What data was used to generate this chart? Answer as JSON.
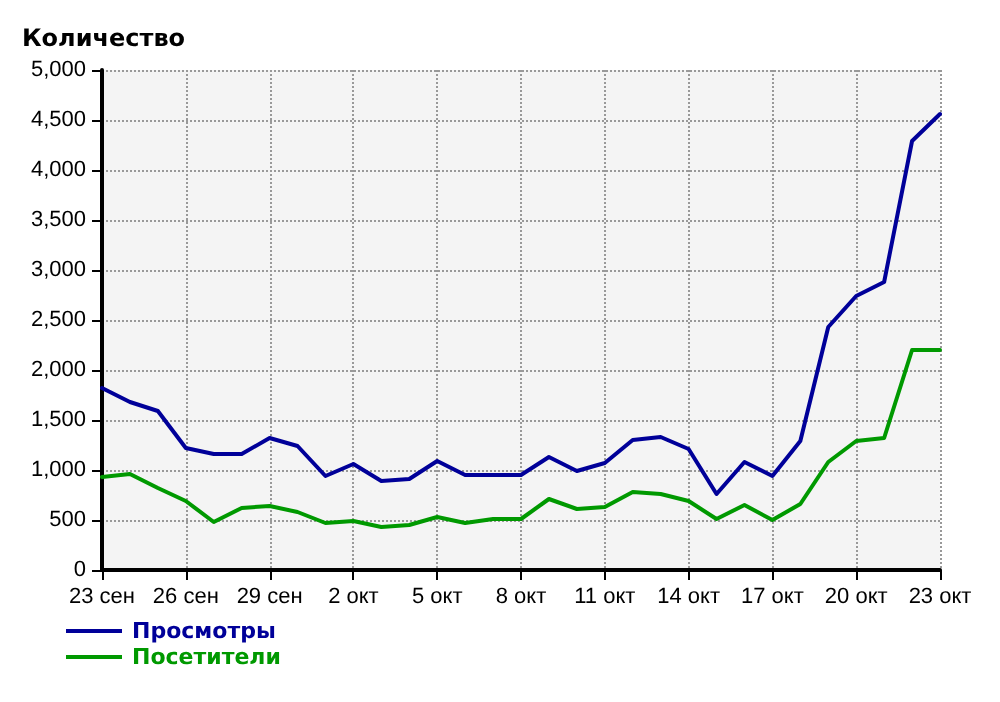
{
  "chart_data": {
    "type": "line",
    "ylabel": "Количество",
    "categories": [
      "23 сен",
      null,
      null,
      "26 сен",
      null,
      null,
      "29 сен",
      null,
      null,
      "2 окт",
      null,
      null,
      "5 окт",
      null,
      null,
      "8 окт",
      null,
      null,
      "11 окт",
      null,
      null,
      "14 окт",
      null,
      null,
      "17 окт",
      null,
      null,
      "20 окт",
      null,
      null,
      "23 окт"
    ],
    "series": [
      {
        "name": "Просмотры",
        "color": "#000099",
        "values": [
          1820,
          1680,
          1590,
          1220,
          1160,
          1160,
          1320,
          1240,
          940,
          1060,
          890,
          910,
          1090,
          950,
          950,
          950,
          1130,
          990,
          1070,
          1300,
          1330,
          1210,
          760,
          1080,
          940,
          1290,
          2430,
          2740,
          2880,
          4290,
          4560
        ]
      },
      {
        "name": "Посетители",
        "color": "#009900",
        "values": [
          930,
          960,
          820,
          690,
          480,
          620,
          640,
          580,
          470,
          490,
          430,
          450,
          530,
          470,
          510,
          510,
          710,
          610,
          630,
          780,
          760,
          690,
          510,
          650,
          500,
          660,
          1080,
          1290,
          1320,
          2200,
          2200
        ]
      }
    ],
    "ylim": [
      0,
      5000
    ],
    "yticks": [
      {
        "value": 0,
        "label": "0"
      },
      {
        "value": 500,
        "label": "500"
      },
      {
        "value": 1000,
        "label": "1,000"
      },
      {
        "value": 1500,
        "label": "1,500"
      },
      {
        "value": 2000,
        "label": "2,000"
      },
      {
        "value": 2500,
        "label": "2,500"
      },
      {
        "value": 3000,
        "label": "3,000"
      },
      {
        "value": 3500,
        "label": "3,500"
      },
      {
        "value": 4000,
        "label": "4,000"
      },
      {
        "value": 4500,
        "label": "4,500"
      },
      {
        "value": 5000,
        "label": "5,000"
      }
    ],
    "grid": true,
    "legend": "bottom left",
    "marker": "none",
    "line_style": "solid"
  }
}
